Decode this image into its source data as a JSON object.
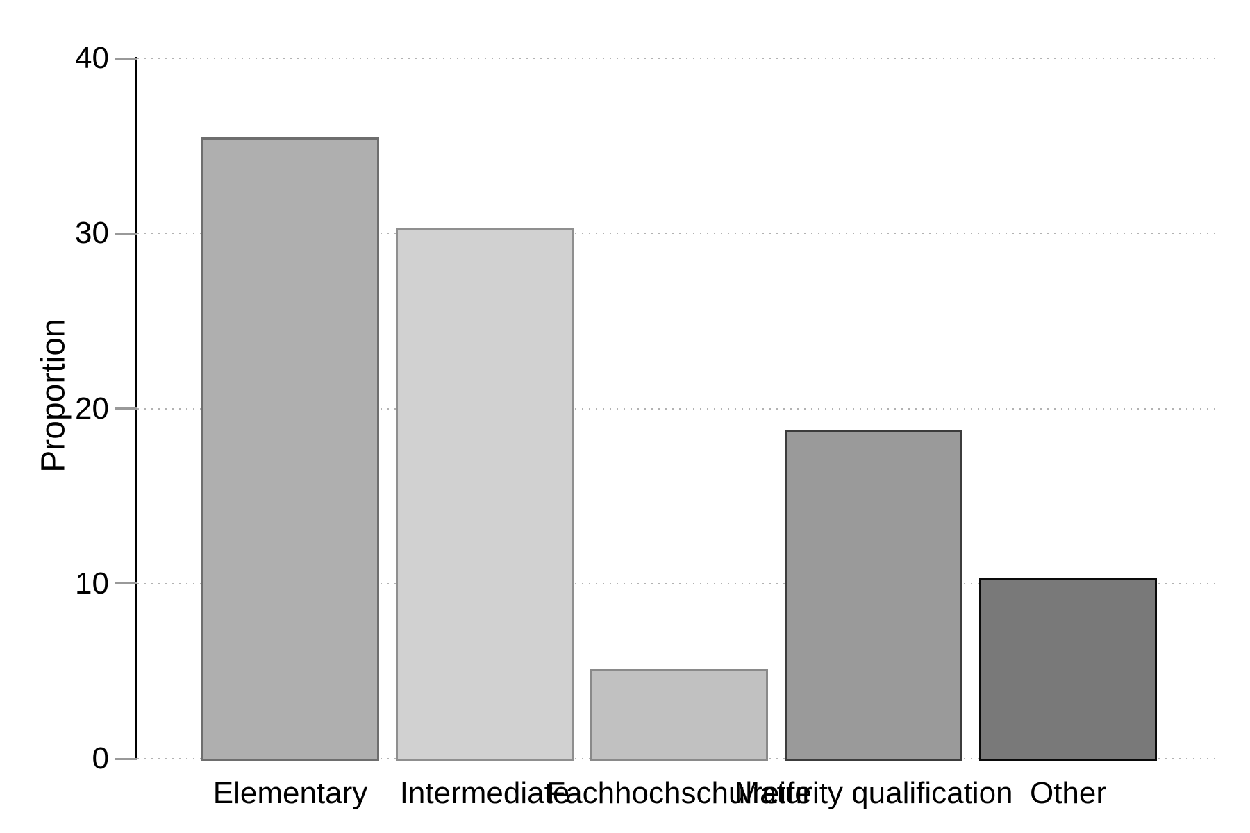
{
  "chart_data": {
    "type": "bar",
    "ylabel": "Proportion",
    "categories": [
      "Elementary",
      "Intermediate",
      "Fachhochschulreife",
      "Maturity qualification",
      "Other"
    ],
    "values": [
      35.5,
      30.3,
      5.1,
      18.8,
      10.3
    ],
    "ylim": [
      0,
      40
    ],
    "yticks": [
      0,
      10,
      20,
      30,
      40
    ],
    "grid": "horizontal-dotted",
    "legend": "none",
    "bar_styles": [
      {
        "fill": "#afafaf",
        "border": "#6e6e6e"
      },
      {
        "fill": "#d1d1d1",
        "border": "#8f8f8f"
      },
      {
        "fill": "#c1c1c1",
        "border": "#8a8a8a"
      },
      {
        "fill": "#9a9a9a",
        "border": "#3c3c3c"
      },
      {
        "fill": "#797979",
        "border": "#0a0a0a"
      }
    ],
    "axis_color": "#000000",
    "tick_color": "#999999",
    "gridline_color": "#b2b2b2",
    "background": "#ffffff"
  }
}
